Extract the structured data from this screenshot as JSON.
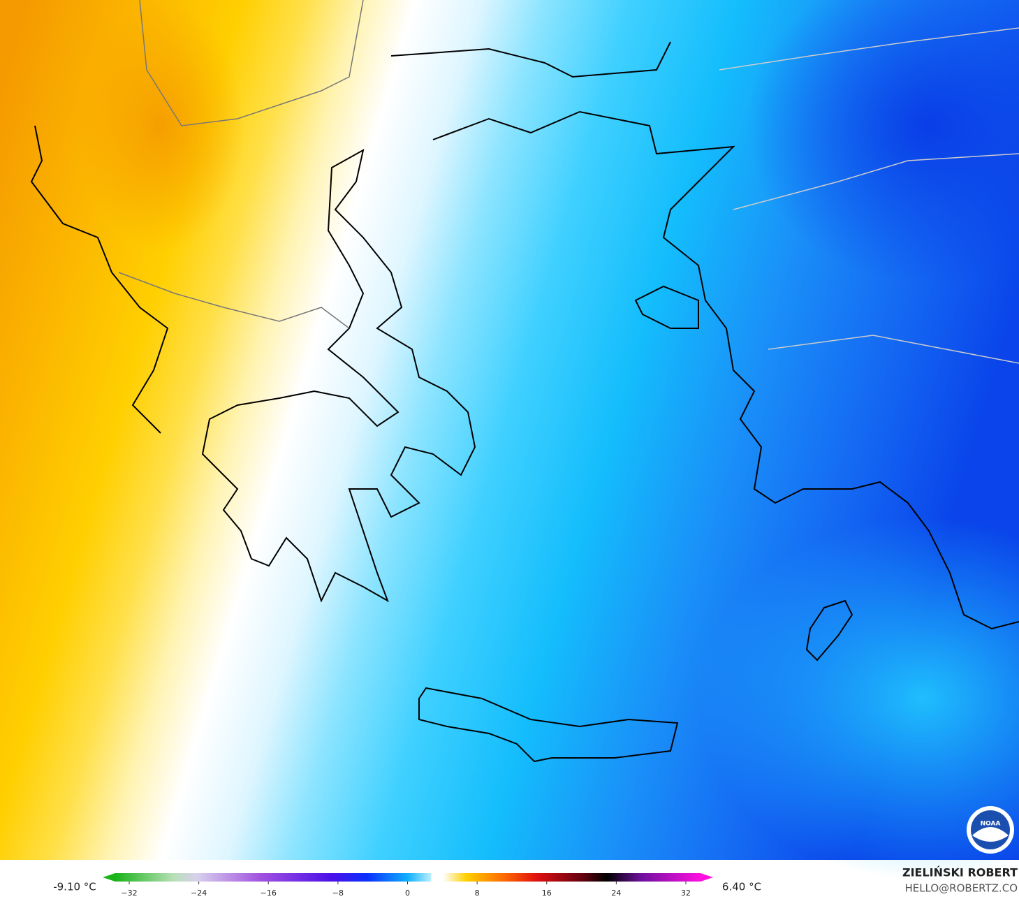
{
  "colorbar": {
    "min_label": "-9.10 °C",
    "max_label": "6.40 °C",
    "ticks": [
      "−32",
      "−24",
      "−16",
      "−8",
      "0",
      "8",
      "16",
      "24",
      "32"
    ]
  },
  "credits": {
    "author": "ZIELIŃSKI ROBERT",
    "email": "HELLO@ROBERTZ.CO"
  },
  "logo": "NOAA"
}
